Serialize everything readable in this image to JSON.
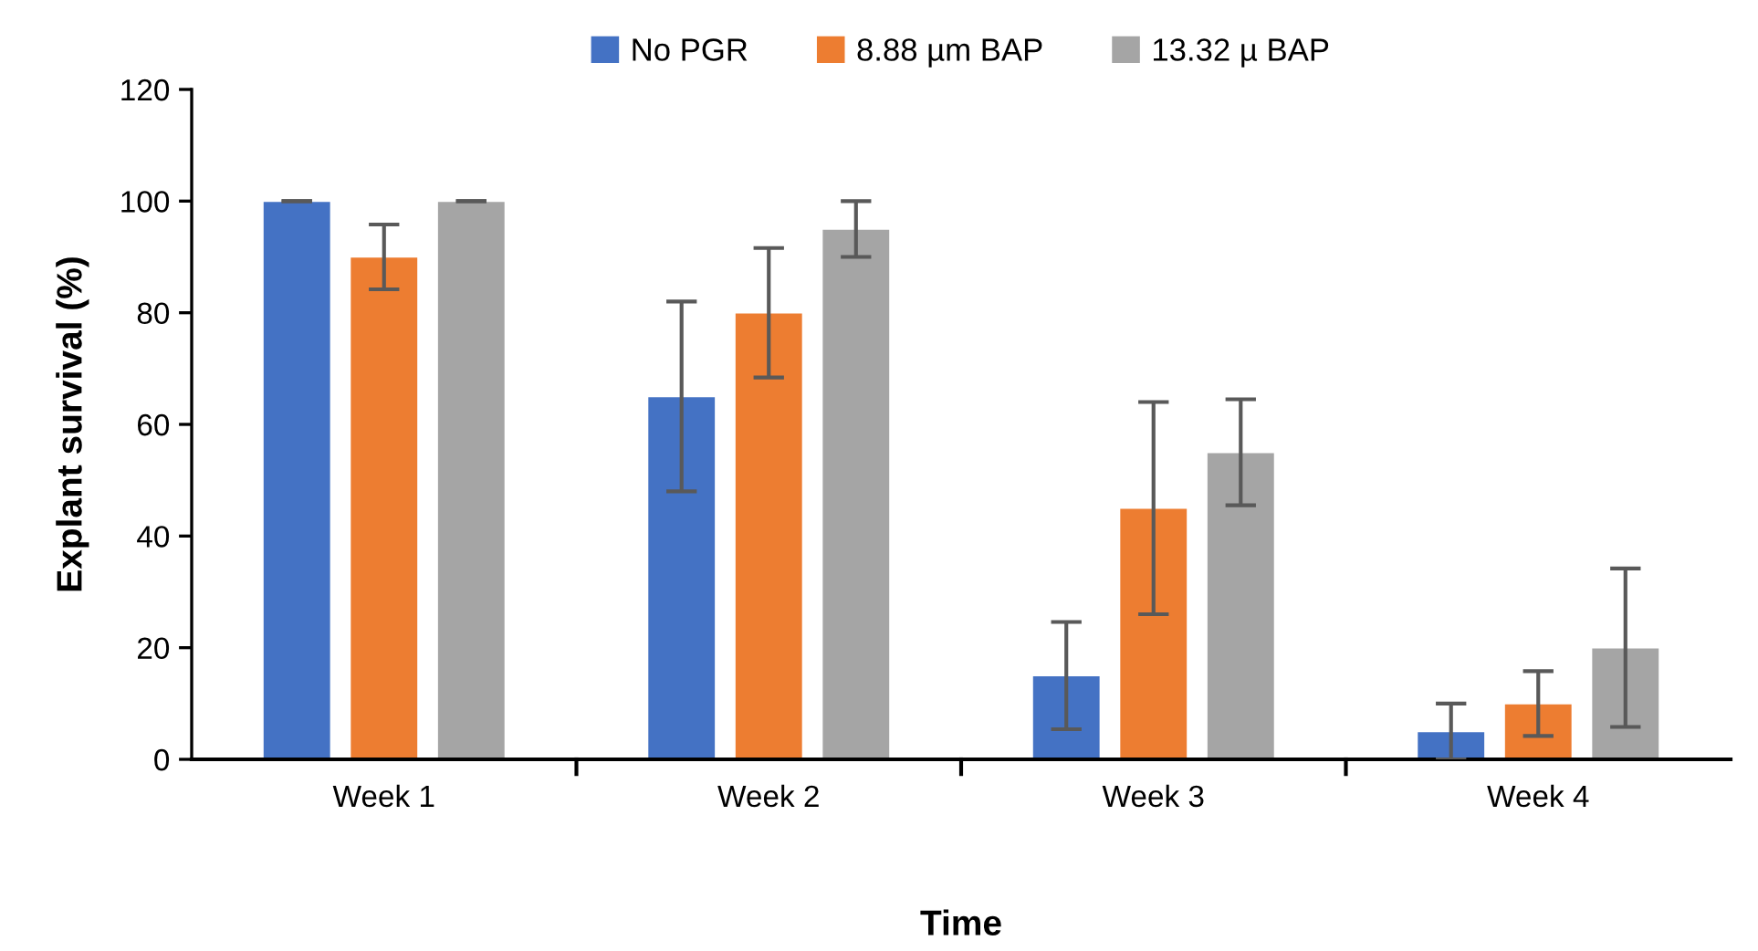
{
  "chart_data": {
    "type": "bar",
    "xlabel": "Time",
    "ylabel": "Explant survival (%)",
    "categories": [
      "Week 1",
      "Week 2",
      "Week 3",
      "Week 4"
    ],
    "series": [
      {
        "name": "No PGR",
        "color": "#4472c4",
        "values": [
          100,
          65,
          15,
          5
        ],
        "errors": [
          0,
          17,
          9.6,
          5
        ]
      },
      {
        "name": "8.88 µm BAP",
        "color": "#ed7d31",
        "values": [
          90,
          80,
          45,
          10
        ],
        "errors": [
          5.8,
          11.6,
          19,
          5.8
        ]
      },
      {
        "name": "13.32 µ BAP",
        "color": "#a5a5a5",
        "values": [
          100,
          95,
          55,
          20
        ],
        "errors": [
          0,
          5,
          9.5,
          14.2
        ]
      }
    ],
    "ylim": [
      0,
      120
    ],
    "yticks": [
      0,
      20,
      40,
      60,
      80,
      100,
      120
    ],
    "grid": false,
    "legend": "top"
  }
}
